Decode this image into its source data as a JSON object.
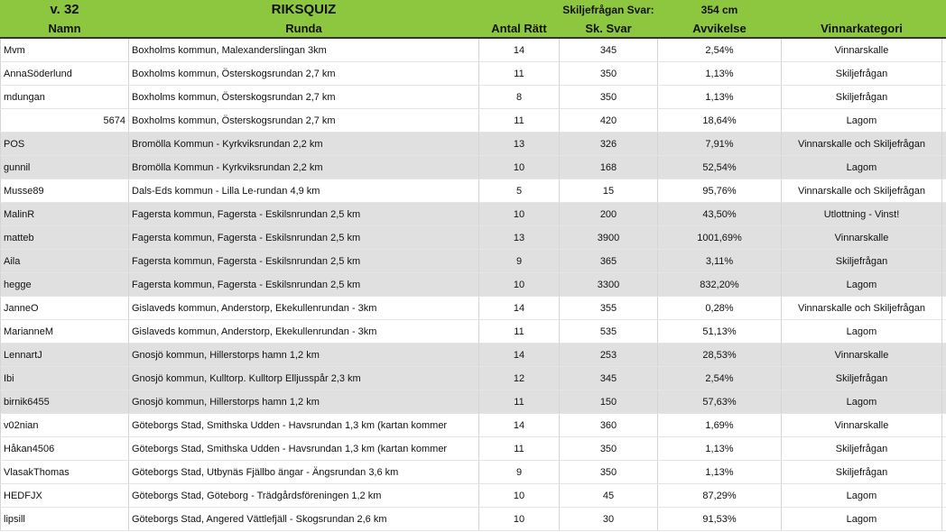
{
  "header": {
    "week": "v. 32",
    "title": "RIKSQUIZ",
    "answer_label": "Skiljefrågan Svar:",
    "answer_value": "354 cm",
    "columns": [
      "Namn",
      "Runda",
      "Antal Rätt",
      "Sk. Svar",
      "Avvikelse",
      "Vinnarkategori"
    ]
  },
  "table": {
    "rows": [
      {
        "cells": [
          "Mvm",
          "Boxholms kommun, Malexanderslingan 3km",
          14,
          345,
          "2,54%",
          "Vinnarskalle"
        ],
        "shaded": false
      },
      {
        "cells": [
          "AnnaSöderlund",
          "Boxholms kommun, Österskogsrundan 2,7 km",
          11,
          350,
          "1,13%",
          "Skiljefrågan"
        ],
        "shaded": false
      },
      {
        "cells": [
          "mdungan",
          "Boxholms kommun, Österskogsrundan 2,7 km",
          8,
          350,
          "1,13%",
          "Skiljefrågan"
        ],
        "shaded": false
      },
      {
        "cells": [
          5674,
          "Boxholms kommun, Österskogsrundan 2,7 km",
          11,
          420,
          "18,64%",
          "Lagom"
        ],
        "shaded": false
      },
      {
        "cells": [
          "POS",
          "Bromölla Kommun - Kyrkviksrundan 2,2 km",
          13,
          326,
          "7,91%",
          "Vinnarskalle och Skiljefrågan"
        ],
        "shaded": true
      },
      {
        "cells": [
          "gunnil",
          "Bromölla Kommun - Kyrkviksrundan 2,2 km",
          10,
          168,
          "52,54%",
          "Lagom"
        ],
        "shaded": true
      },
      {
        "cells": [
          "Musse89",
          "Dals-Eds kommun - Lilla Le-rundan 4,9 km",
          5,
          15,
          "95,76%",
          "Vinnarskalle och Skiljefrågan"
        ],
        "shaded": false
      },
      {
        "cells": [
          "MalinR",
          "Fagersta kommun, Fagersta - Eskilsnrundan 2,5 km",
          10,
          200,
          "43,50%",
          "Utlottning - Vinst!"
        ],
        "shaded": true
      },
      {
        "cells": [
          "matteb",
          "Fagersta kommun, Fagersta - Eskilsnrundan 2,5 km",
          13,
          3900,
          "1001,69%",
          "Vinnarskalle"
        ],
        "shaded": true
      },
      {
        "cells": [
          "Aila",
          "Fagersta kommun, Fagersta - Eskilsnrundan 2,5 km",
          9,
          365,
          "3,11%",
          "Skiljefrågan"
        ],
        "shaded": true
      },
      {
        "cells": [
          "hegge",
          "Fagersta kommun, Fagersta - Eskilsnrundan 2,5 km",
          10,
          3300,
          "832,20%",
          "Lagom"
        ],
        "shaded": true
      },
      {
        "cells": [
          "JanneO",
          "Gislaveds kommun, Anderstorp, Ekekullenrundan - 3km",
          14,
          355,
          "0,28%",
          "Vinnarskalle och Skiljefrågan"
        ],
        "shaded": false
      },
      {
        "cells": [
          "MarianneM",
          "Gislaveds kommun, Anderstorp, Ekekullenrundan - 3km",
          11,
          535,
          "51,13%",
          "Lagom"
        ],
        "shaded": false
      },
      {
        "cells": [
          "LennartJ",
          "Gnosjö kommun, Hillerstorps hamn 1,2 km",
          14,
          253,
          "28,53%",
          "Vinnarskalle"
        ],
        "shaded": true
      },
      {
        "cells": [
          "Ibi",
          "Gnosjö kommun, Kulltorp. Kulltorp Elljusspår 2,3 km",
          12,
          345,
          "2,54%",
          "Skiljefrågan"
        ],
        "shaded": true
      },
      {
        "cells": [
          "birnik6455",
          "Gnosjö kommun, Hillerstorps hamn 1,2 km",
          11,
          150,
          "57,63%",
          "Lagom"
        ],
        "shaded": true
      },
      {
        "cells": [
          "v02nian",
          "Göteborgs Stad, Smithska Udden - Havsrundan 1,3 km (kartan kommer",
          14,
          360,
          "1,69%",
          "Vinnarskalle"
        ],
        "shaded": false
      },
      {
        "cells": [
          "Håkan4506",
          "Göteborgs Stad, Smithska Udden - Havsrundan 1,3 km (kartan kommer",
          11,
          350,
          "1,13%",
          "Skiljefrågan"
        ],
        "shaded": false
      },
      {
        "cells": [
          "VlasakThomas",
          "Göteborgs Stad, Utbynäs Fjällbo ängar - Ängsrundan 3,6 km",
          9,
          350,
          "1,13%",
          "Skiljefrågan"
        ],
        "shaded": false
      },
      {
        "cells": [
          "HEDFJX",
          "Göteborgs Stad, Göteborg - Trädgårdsföreningen 1,2 km",
          10,
          45,
          "87,29%",
          "Lagom"
        ],
        "shaded": false
      },
      {
        "cells": [
          "lipsill",
          "Göteborgs Stad, Angered Vättlefjäll - Skogsrundan 2,6 km",
          10,
          30,
          "91,53%",
          "Lagom"
        ],
        "shaded": false
      }
    ]
  }
}
